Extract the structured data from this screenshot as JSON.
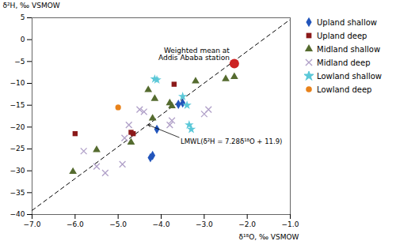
{
  "chart_data": {
    "type": "scatter",
    "xlabel": "δ¹⁸O, ‰ VSMOW",
    "ylabel": "δ²H, ‰ VSMOW",
    "xlim": [
      -7,
      -1
    ],
    "ylim": [
      -40,
      5
    ],
    "xticks": [
      -7,
      -6,
      -5,
      -4,
      -3,
      -2,
      -1
    ],
    "yticks": [
      -40,
      -35,
      -30,
      -25,
      -20,
      -15,
      -10,
      -5,
      0,
      5
    ],
    "grid": false,
    "legend": "right",
    "series": [
      {
        "name": "Upland shallow",
        "color": "#2255BB",
        "marker": "diamond",
        "values": [
          [
            -3.5,
            -14.5
          ],
          [
            -3.6,
            -14.8
          ],
          [
            -4.1,
            -20.5
          ],
          [
            -4.2,
            -26.5
          ],
          [
            -4.25,
            -27.0
          ]
        ]
      },
      {
        "name": "Upland deep",
        "color": "#8B1A1A",
        "marker": "square",
        "values": [
          [
            -6.0,
            -21.5
          ],
          [
            -4.7,
            -21.2
          ],
          [
            -4.65,
            -21.5
          ],
          [
            -3.7,
            -10.2
          ]
        ]
      },
      {
        "name": "Midland shallow",
        "color": "#556B2F",
        "marker": "triangle",
        "values": [
          [
            -6.05,
            -30.2
          ],
          [
            -5.5,
            -25.2
          ],
          [
            -4.7,
            -23.5
          ],
          [
            -4.3,
            -11.5
          ],
          [
            -4.2,
            -18.0
          ],
          [
            -4.15,
            -13.5
          ],
          [
            -3.8,
            -14.5
          ],
          [
            -3.75,
            -15.2
          ],
          [
            -3.2,
            -9.5
          ],
          [
            -2.5,
            -9.0
          ],
          [
            -2.3,
            -8.5
          ]
        ]
      },
      {
        "name": "Midland deep",
        "color": "#B0A0C8",
        "marker": "times",
        "values": [
          [
            -5.8,
            -25.5
          ],
          [
            -5.5,
            -29.0
          ],
          [
            -5.3,
            -30.5
          ],
          [
            -4.9,
            -28.5
          ],
          [
            -4.85,
            -22.5
          ],
          [
            -4.75,
            -19.5
          ],
          [
            -4.5,
            -16.0
          ],
          [
            -4.4,
            -16.5
          ],
          [
            -3.8,
            -19.5
          ],
          [
            -3.75,
            -18.5
          ],
          [
            -3.0,
            -17.0
          ],
          [
            -2.9,
            -16.0
          ]
        ]
      },
      {
        "name": "Lowland shallow",
        "color": "#5BC8D8",
        "marker": "star",
        "values": [
          [
            -4.15,
            -9.0
          ],
          [
            -4.1,
            -9.2
          ],
          [
            -3.5,
            -13.0
          ],
          [
            -3.4,
            -15.0
          ],
          [
            -3.35,
            -19.5
          ],
          [
            -3.3,
            -20.5
          ]
        ]
      },
      {
        "name": "Lowland deep",
        "color": "#E8821A",
        "marker": "circle",
        "values": [
          [
            -5.0,
            -15.5
          ]
        ]
      },
      {
        "color": "#CC2222",
        "marker": "circle",
        "values": [
          [
            -2.3,
            -5.5
          ]
        ]
      },
      {
        "type": "line",
        "color": "#000000",
        "line_style": "dashed",
        "values": [
          [
            -7,
            -39.06
          ],
          [
            -1,
            4.62
          ]
        ]
      }
    ],
    "annotations": [
      "Weighted mean at\nAddis Ababa station",
      "LMWL(δ²H = 7.28δ¹⁸O + 11.9)"
    ]
  }
}
